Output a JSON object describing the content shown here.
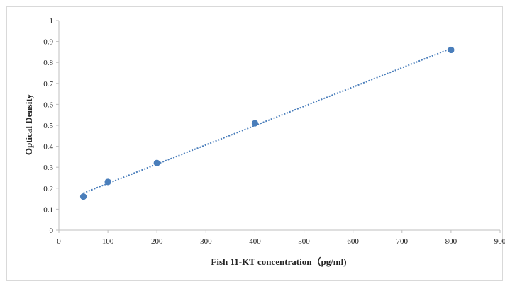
{
  "chart_data": {
    "type": "scatter",
    "title": "",
    "xlabel": "Fish 11-KT concentration（pg/ml)",
    "ylabel": "Optical Density",
    "xlim": [
      0,
      900
    ],
    "ylim": [
      0,
      1
    ],
    "x_ticks": [
      "0",
      "100",
      "200",
      "300",
      "400",
      "500",
      "600",
      "700",
      "800",
      "900"
    ],
    "y_ticks": [
      "0",
      "0.1",
      "0.2",
      "0.3",
      "0.4",
      "0.5",
      "0.6",
      "0.7",
      "0.8",
      "0.9",
      "1"
    ],
    "grid": false,
    "legend": "none",
    "trendline": "linear, dotted",
    "series": [
      {
        "x": [
          50,
          100,
          200,
          400,
          800
        ],
        "y": [
          0.16,
          0.23,
          0.32,
          0.51,
          0.86
        ],
        "color": "#4a7ebb"
      }
    ]
  }
}
